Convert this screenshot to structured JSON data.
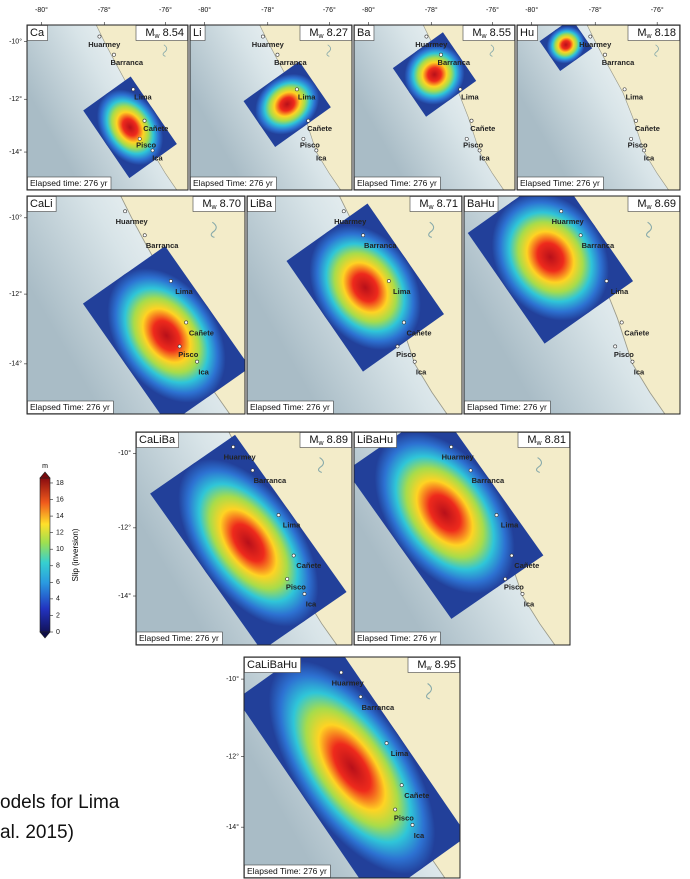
{
  "lon_ticks": [
    "-80°",
    "-78°",
    "-76°"
  ],
  "lat_ticks": [
    "-10°",
    "-12°",
    "-14°"
  ],
  "cities": [
    "Huarmey",
    "Barranca",
    "Lima",
    "Cañete",
    "Pisco",
    "Ica"
  ],
  "mw_symbol": "M",
  "mw_sub": "w",
  "panels": [
    {
      "label": "Ca",
      "mw": "8.54",
      "elapsed": "Elapsed time: 276 yr"
    },
    {
      "label": "Li",
      "mw": "8.27",
      "elapsed": "Elapsed Time: 276 yr"
    },
    {
      "label": "Ba",
      "mw": "8.55",
      "elapsed": "Elapsed Time: 276 yr"
    },
    {
      "label": "Hu",
      "mw": "8.18",
      "elapsed": "Elapsed Time: 276 yr"
    },
    {
      "label": "CaLi",
      "mw": "8.70",
      "elapsed": "Elapsed Time: 276 yr"
    },
    {
      "label": "LiBa",
      "mw": "8.71",
      "elapsed": "Elapsed Time: 276 yr"
    },
    {
      "label": "BaHu",
      "mw": "8.69",
      "elapsed": "Elapsed Time: 276 yr"
    },
    {
      "label": "CaLiBa",
      "mw": "8.89",
      "elapsed": "Elapsed Time: 276 yr"
    },
    {
      "label": "LiBaHu",
      "mw": "8.81",
      "elapsed": "Elapsed Time: 276 yr"
    },
    {
      "label": "CaLiBaHu",
      "mw": "8.95",
      "elapsed": "Elapsed Time: 276 yr"
    }
  ],
  "colorbar": {
    "unit": "m",
    "label": "Slip (inversion)",
    "lim": [
      0,
      18.6
    ],
    "ticks": [
      0,
      2,
      4,
      6,
      8,
      10,
      12,
      14,
      16,
      18
    ]
  },
  "caption": [
    "odels for Lima",
    "al. 2015)"
  ]
}
